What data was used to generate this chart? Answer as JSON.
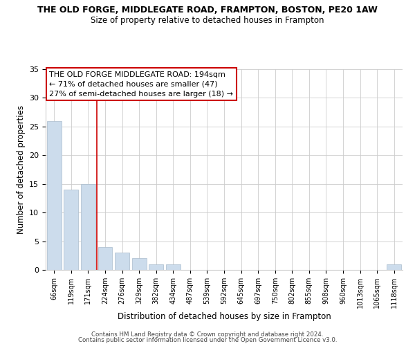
{
  "title": "THE OLD FORGE, MIDDLEGATE ROAD, FRAMPTON, BOSTON, PE20 1AW",
  "subtitle": "Size of property relative to detached houses in Frampton",
  "xlabel": "Distribution of detached houses by size in Frampton",
  "ylabel": "Number of detached properties",
  "bar_labels": [
    "66sqm",
    "119sqm",
    "171sqm",
    "224sqm",
    "276sqm",
    "329sqm",
    "382sqm",
    "434sqm",
    "487sqm",
    "539sqm",
    "592sqm",
    "645sqm",
    "697sqm",
    "750sqm",
    "802sqm",
    "855sqm",
    "908sqm",
    "960sqm",
    "1013sqm",
    "1065sqm",
    "1118sqm"
  ],
  "bar_values": [
    26,
    14,
    15,
    4,
    3,
    2,
    1,
    1,
    0,
    0,
    0,
    0,
    0,
    0,
    0,
    0,
    0,
    0,
    0,
    0,
    1
  ],
  "bar_color": "#ccdcec",
  "bar_edge_color": "#aabccc",
  "reference_line_color": "#cc0000",
  "reference_line_index": 2,
  "annotation_line1": "THE OLD FORGE MIDDLEGATE ROAD: 194sqm",
  "annotation_line2": "← 71% of detached houses are smaller (47)",
  "annotation_line3": "27% of semi-detached houses are larger (18) →",
  "ylim": [
    0,
    35
  ],
  "yticks": [
    0,
    5,
    10,
    15,
    20,
    25,
    30,
    35
  ],
  "footer_line1": "Contains HM Land Registry data © Crown copyright and database right 2024.",
  "footer_line2": "Contains public sector information licensed under the Open Government Licence v3.0.",
  "background_color": "#ffffff",
  "grid_color": "#cccccc"
}
